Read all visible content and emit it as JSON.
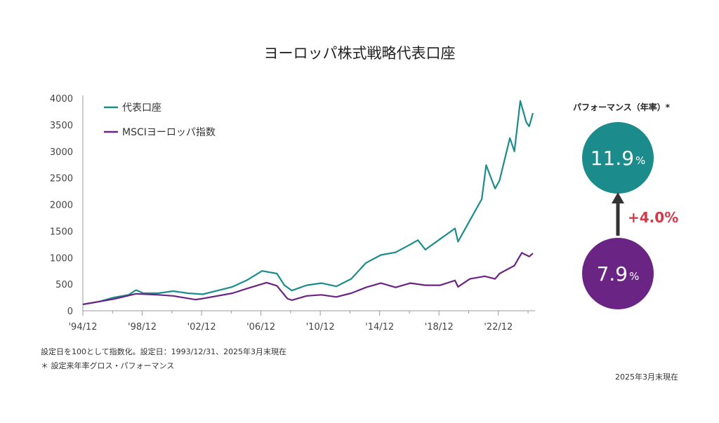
{
  "title": "ヨーロッパ株式戦略代表口座",
  "notes": [
    "設定日を100として指数化。設定日：1993/12/31、2025年3月末現在",
    "＊ 設定来年率グロス・パフォーマンス"
  ],
  "as_of": "2025年3月末現在",
  "performance": {
    "title": "パフォーマンス（年率）*",
    "fund_value": "11.9",
    "index_value": "7.9",
    "unit": "%",
    "difference": "+4.0%",
    "colors": {
      "fund": "#1b8b8b",
      "index": "#6a2483",
      "difference": "#d23a48",
      "arrow": "#333333"
    }
  },
  "chart_data": {
    "type": "line",
    "title": "ヨーロッパ株式戦略代表口座",
    "xlabel": "",
    "ylabel": "",
    "xlim": [
      1994.92,
      2025.25
    ],
    "ylim": [
      0,
      4000
    ],
    "yticks": [
      0,
      500,
      1000,
      1500,
      2000,
      2500,
      3000,
      3500,
      4000
    ],
    "xticks": [
      {
        "x": 1994.92,
        "label": "'94/12"
      },
      {
        "x": 1998.92,
        "label": "'98/12"
      },
      {
        "x": 2002.92,
        "label": "'02/12"
      },
      {
        "x": 2006.92,
        "label": "'06/12"
      },
      {
        "x": 2010.92,
        "label": "'10/12"
      },
      {
        "x": 2014.92,
        "label": "'14/12"
      },
      {
        "x": 2018.92,
        "label": "'18/12"
      },
      {
        "x": 2022.92,
        "label": "'22/12"
      }
    ],
    "grid": false,
    "legend_position": "top-left",
    "series": [
      {
        "name": "代表口座",
        "color": "#1b8b8b",
        "x": [
          1994.92,
          1996,
          1997,
          1998,
          1998.5,
          1999,
          2000,
          2001,
          2002,
          2003,
          2004,
          2005,
          2006,
          2007,
          2007.6,
          2008,
          2008.5,
          2009,
          2010,
          2011,
          2012,
          2013,
          2014,
          2015,
          2016,
          2017,
          2017.5,
          2018,
          2019,
          2020,
          2020.2,
          2021,
          2021.8,
          2022.1,
          2022.7,
          2023,
          2023.7,
          2024,
          2024.4,
          2024.8,
          2025,
          2025.25
        ],
        "values": [
          120,
          170,
          250,
          300,
          390,
          330,
          330,
          370,
          330,
          310,
          380,
          450,
          580,
          750,
          720,
          700,
          480,
          380,
          480,
          520,
          460,
          600,
          900,
          1050,
          1100,
          1250,
          1330,
          1150,
          1350,
          1550,
          1300,
          1700,
          2100,
          2740,
          2300,
          2450,
          3250,
          3000,
          3950,
          3550,
          3470,
          3720
        ]
      },
      {
        "name": "MSCIヨーロッパ指数",
        "color": "#6a2483",
        "x": [
          1994.92,
          1997,
          1998.5,
          2000,
          2001,
          2002.5,
          2003,
          2005,
          2006,
          2007.3,
          2008,
          2008.7,
          2009,
          2010,
          2011,
          2012,
          2013,
          2014,
          2015,
          2016,
          2017,
          2018,
          2019,
          2020,
          2020.2,
          2021,
          2022,
          2022.7,
          2023,
          2024,
          2024.5,
          2025,
          2025.25
        ],
        "values": [
          120,
          220,
          320,
          300,
          280,
          210,
          230,
          330,
          420,
          530,
          470,
          230,
          200,
          280,
          300,
          260,
          330,
          440,
          520,
          440,
          520,
          480,
          480,
          570,
          450,
          600,
          650,
          600,
          700,
          850,
          1090,
          1020,
          1080
        ]
      }
    ]
  }
}
